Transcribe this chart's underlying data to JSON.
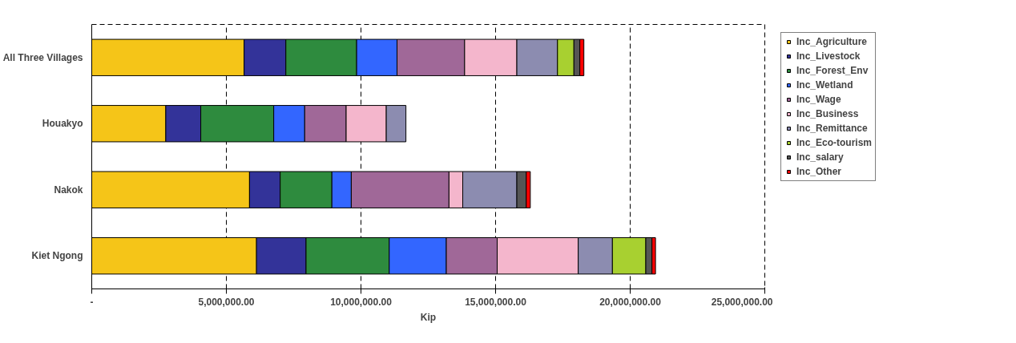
{
  "chart_data": {
    "type": "bar",
    "orientation": "horizontal",
    "stacked": true,
    "xlabel": "Kip",
    "categories": [
      "All Three Villages",
      "Houakyo",
      "Nakok",
      "Kiet Ngong"
    ],
    "series": [
      {
        "name": "Inc_Agriculture",
        "color": "#f5c518",
        "values": [
          5660000,
          2750000,
          5860000,
          6120000
        ]
      },
      {
        "name": "Inc_Livestock",
        "color": "#333399",
        "values": [
          1550000,
          1300000,
          1140000,
          1840000
        ]
      },
      {
        "name": "Inc_Forest_Env",
        "color": "#2e8b3e",
        "values": [
          2630000,
          2710000,
          1920000,
          3090000
        ]
      },
      {
        "name": "Inc_Wetland",
        "color": "#3366ff",
        "values": [
          1500000,
          1150000,
          720000,
          2120000
        ]
      },
      {
        "name": "Inc_Wage",
        "color": "#a06898",
        "values": [
          2510000,
          1540000,
          3630000,
          1890000
        ]
      },
      {
        "name": "Inc_Business",
        "color": "#f4b6cc",
        "values": [
          1940000,
          1490000,
          510000,
          3010000
        ]
      },
      {
        "name": "Inc_Remittance",
        "color": "#8c8cb0",
        "values": [
          1510000,
          730000,
          2010000,
          1270000
        ]
      },
      {
        "name": "Inc_Eco-tourism",
        "color": "#a8d030",
        "values": [
          610000,
          0,
          0,
          1240000
        ]
      },
      {
        "name": "Inc_salary",
        "color": "#555555",
        "values": [
          220000,
          0,
          350000,
          230000
        ]
      },
      {
        "name": "Inc_Other",
        "color": "#ff0000",
        "values": [
          150000,
          0,
          150000,
          130000
        ]
      }
    ],
    "xlim": [
      0,
      25000000
    ],
    "xticks": [
      {
        "value": 0,
        "label": "-"
      },
      {
        "value": 5000000,
        "label": "5,000,000.00"
      },
      {
        "value": 10000000,
        "label": "10,000,000.00"
      },
      {
        "value": 15000000,
        "label": "15,000,000.00"
      },
      {
        "value": 20000000,
        "label": "20,000,000.00"
      },
      {
        "value": 25000000,
        "label": "25,000,000.00"
      }
    ],
    "grid": "x",
    "line_style": "dashed",
    "legend": "right"
  }
}
